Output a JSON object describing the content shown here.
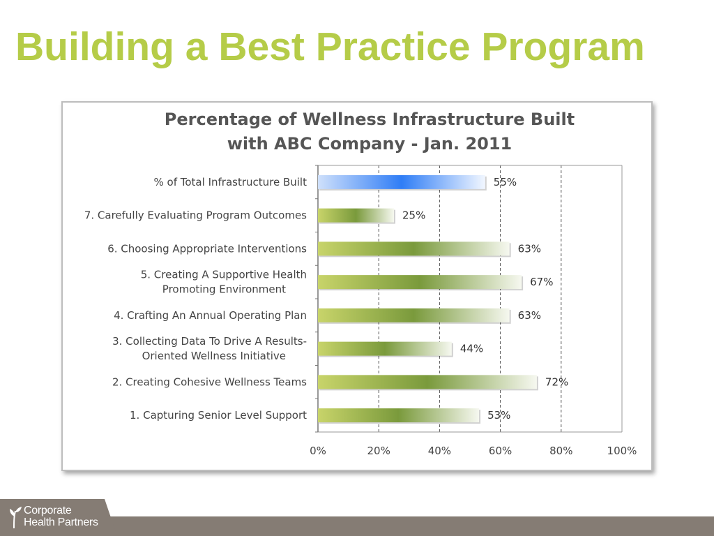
{
  "slide": {
    "title": "Building a Best Practice Program",
    "title_color": "#b5cc48"
  },
  "logo": {
    "line1": "Corporate",
    "line2": "Health Partners",
    "icon": "sprout-icon"
  },
  "colors": {
    "total_bar": "#2f7df6",
    "step_bar": "#7a9a3c",
    "step_bar_light": "#c8d46a",
    "grid": "#555555",
    "text": "#444444"
  },
  "chart_data": {
    "type": "bar",
    "orientation": "horizontal",
    "title": [
      "Percentage of Wellness Infrastructure Built",
      "with ABC Company - Jan. 2011"
    ],
    "categories": [
      [
        "% of Total Infrastructure Built"
      ],
      [
        "7. Carefully Evaluating Program Outcomes"
      ],
      [
        "6. Choosing Appropriate Interventions"
      ],
      [
        "5. Creating A Supportive Health",
        "Promoting Environment"
      ],
      [
        "4. Crafting An Annual Operating Plan"
      ],
      [
        "3. Collecting Data To Drive A Results-",
        "Oriented Wellness Initiative"
      ],
      [
        "2. Creating Cohesive Wellness Teams"
      ],
      [
        "1. Capturing Senior Level Support"
      ]
    ],
    "values": [
      55,
      25,
      63,
      67,
      63,
      44,
      72,
      53
    ],
    "value_labels": [
      "55%",
      "25%",
      "63%",
      "67%",
      "63%",
      "44%",
      "72%",
      "53%"
    ],
    "xlim": [
      0,
      100
    ],
    "x_ticks": [
      0,
      20,
      40,
      60,
      80,
      100
    ],
    "x_tick_labels": [
      "0%",
      "20%",
      "40%",
      "60%",
      "80%",
      "100%"
    ],
    "grid": "vertical dashed",
    "legend": "none"
  }
}
